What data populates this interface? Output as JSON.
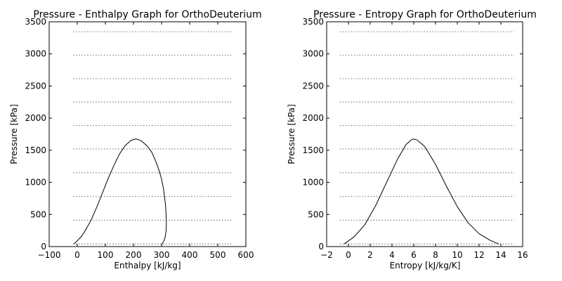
{
  "chart_data": [
    {
      "type": "line",
      "title": "Pressure - Enthalpy Graph for OrthoDeuterium",
      "xlabel": "Enthalpy [kJ/kg]",
      "ylabel": "Pressure [kPa]",
      "xlim": [
        -100,
        600
      ],
      "ylim": [
        0,
        3500
      ],
      "xticks": [
        -100,
        0,
        100,
        200,
        300,
        400,
        500,
        600
      ],
      "yticks": [
        0,
        500,
        1000,
        1500,
        2000,
        2500,
        3000,
        3500
      ],
      "xtick_labels": [
        "−100",
        "0",
        "100",
        "200",
        "300",
        "400",
        "500",
        "600"
      ],
      "ytick_labels": [
        "0",
        "500",
        "1000",
        "1500",
        "2000",
        "2500",
        "3000",
        "3500"
      ],
      "grid": false,
      "isobars": {
        "pressures": [
          40,
          410,
          780,
          1150,
          1520,
          1885,
          2250,
          2615,
          2980,
          3345
        ],
        "x_range": [
          -15,
          555
        ],
        "style": "dotted"
      },
      "series": [
        {
          "style": "solid",
          "x": [
            -12,
            0,
            15,
            30,
            50,
            70,
            90,
            110,
            130,
            150,
            170,
            190,
            205,
            215,
            230,
            250,
            265,
            280,
            290,
            300,
            306,
            310,
            314,
            316,
            317,
            316,
            313,
            308,
            302
          ],
          "y": [
            40,
            90,
            160,
            260,
            420,
            620,
            840,
            1060,
            1260,
            1440,
            1570,
            1650,
            1675,
            1670,
            1640,
            1560,
            1470,
            1320,
            1200,
            1050,
            920,
            790,
            650,
            500,
            360,
            240,
            150,
            90,
            40
          ]
        }
      ]
    },
    {
      "type": "line",
      "title": "Pressure - Entropy Graph for OrthoDeuterium",
      "xlabel": "Entropy [kJ/kg/K]",
      "ylabel": "Pressure [kPa]",
      "xlim": [
        -2,
        16
      ],
      "ylim": [
        0,
        3500
      ],
      "xticks": [
        -2,
        0,
        2,
        4,
        6,
        8,
        10,
        12,
        14,
        16
      ],
      "yticks": [
        0,
        500,
        1000,
        1500,
        2000,
        2500,
        3000,
        3500
      ],
      "xtick_labels": [
        "−2",
        "0",
        "2",
        "4",
        "6",
        "8",
        "10",
        "12",
        "14",
        "16"
      ],
      "ytick_labels": [
        "0",
        "500",
        "1000",
        "1500",
        "2000",
        "2500",
        "3000",
        "3500"
      ],
      "grid": false,
      "isobars": {
        "pressures": [
          40,
          410,
          780,
          1150,
          1520,
          1885,
          2250,
          2615,
          2980,
          3345
        ],
        "x_range": [
          -0.8,
          16
        ],
        "style": "dotted"
      },
      "series": [
        {
          "style": "solid",
          "x": [
            -0.4,
            0.5,
            1.5,
            2.5,
            3.5,
            4.5,
            5.3,
            5.8,
            6.0,
            6.3,
            7.0,
            8.0,
            9.0,
            10.0,
            11.0,
            12.0,
            13.0,
            13.8
          ],
          "y": [
            40,
            150,
            340,
            640,
            1000,
            1360,
            1590,
            1665,
            1675,
            1660,
            1560,
            1280,
            940,
            620,
            370,
            200,
            100,
            40
          ]
        }
      ]
    }
  ]
}
